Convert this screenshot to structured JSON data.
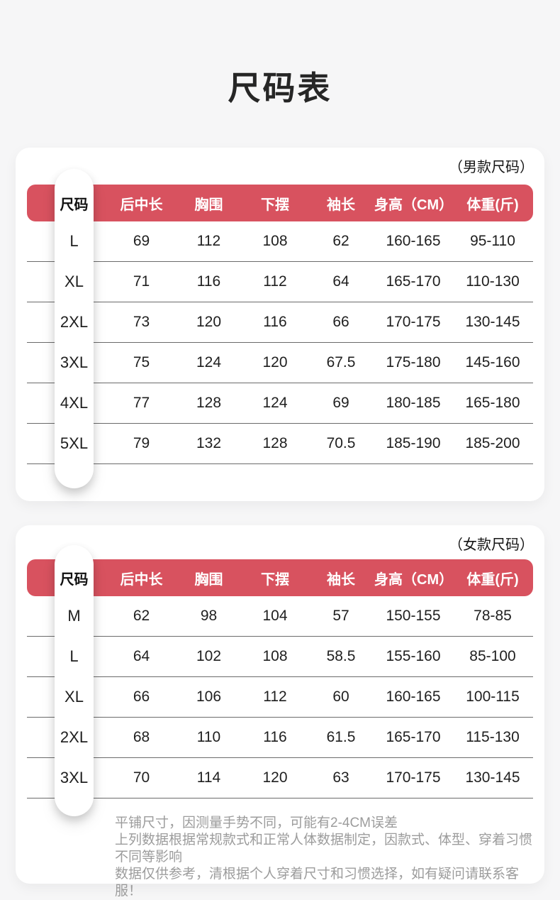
{
  "page": {
    "title": "尺码表"
  },
  "colors": {
    "accent_red": "#d8525f",
    "page_background": "#f6f6f7",
    "card_background": "#ffffff",
    "divider": "#6b6b6b",
    "note_text": "#9c9c9c"
  },
  "tables": [
    {
      "tag": "（男款尺码）",
      "headers": [
        "尺码",
        "后中长",
        "胸围",
        "下摆",
        "袖长",
        "身高（CM）",
        "体重(斤)"
      ],
      "rows": [
        [
          "L",
          "69",
          "112",
          "108",
          "62",
          "160-165",
          "95-110"
        ],
        [
          "XL",
          "71",
          "116",
          "112",
          "64",
          "165-170",
          "110-130"
        ],
        [
          "2XL",
          "73",
          "120",
          "116",
          "66",
          "170-175",
          "130-145"
        ],
        [
          "3XL",
          "75",
          "124",
          "120",
          "67.5",
          "175-180",
          "145-160"
        ],
        [
          "4XL",
          "77",
          "128",
          "124",
          "69",
          "180-185",
          "165-180"
        ],
        [
          "5XL",
          "79",
          "132",
          "128",
          "70.5",
          "185-190",
          "185-200"
        ]
      ]
    },
    {
      "tag": "（女款尺码）",
      "headers": [
        "尺码",
        "后中长",
        "胸围",
        "下摆",
        "袖长",
        "身高（CM）",
        "体重(斤)"
      ],
      "rows": [
        [
          "M",
          "62",
          "98",
          "104",
          "57",
          "150-155",
          "78-85"
        ],
        [
          "L",
          "64",
          "102",
          "108",
          "58.5",
          "155-160",
          "85-100"
        ],
        [
          "XL",
          "66",
          "106",
          "112",
          "60",
          "160-165",
          "100-115"
        ],
        [
          "2XL",
          "68",
          "110",
          "116",
          "61.5",
          "165-170",
          "115-130"
        ],
        [
          "3XL",
          "70",
          "114",
          "120",
          "63",
          "170-175",
          "130-145"
        ]
      ]
    }
  ],
  "notes": [
    "平铺尺寸，因测量手势不同，可能有2-4CM误差",
    "上列数据根据常规款式和正常人体数据制定，因款式、体型、穿着习惯不同等影响",
    "数据仅供参考，清根据个人穿着尺寸和习惯选择，如有疑问请联系客服！"
  ]
}
